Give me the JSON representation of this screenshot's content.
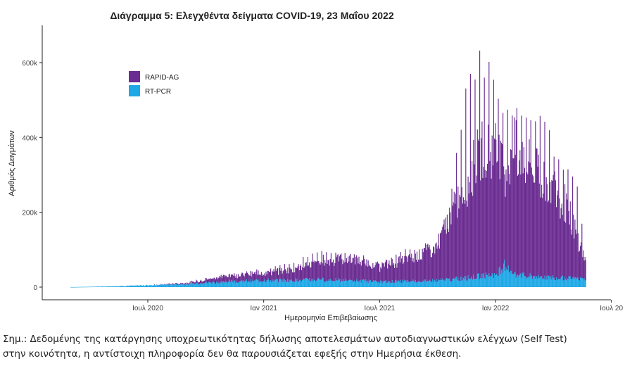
{
  "chart_data": {
    "type": "area",
    "title": "Διάγραμμα 5: Ελεγχθέντα δείγματα COVID-19, 23 Μαΐου 2022",
    "xlabel": "Ημερομηνία Επιβεβαίωσης",
    "ylabel": "Αριθμός Δειγμάτων",
    "x_ticks": [
      "Ιουλ 2020",
      "Ιαν 2021",
      "Ιουλ 2021",
      "Ιαν 2022",
      "Ιουλ 20"
    ],
    "y_ticks": [
      "0",
      "200k",
      "400k",
      "600k"
    ],
    "ylim": [
      0,
      700000
    ],
    "stacked": true,
    "legend_position": "top-left",
    "x": [
      "2020-03-01",
      "2020-05-01",
      "2020-07-01",
      "2020-09-01",
      "2020-11-01",
      "2021-01-01",
      "2021-02-15",
      "2021-04-01",
      "2021-05-15",
      "2021-07-01",
      "2021-08-15",
      "2021-09-30",
      "2021-10-20",
      "2021-11-15",
      "2021-12-10",
      "2022-01-01",
      "2022-01-15",
      "2022-02-01",
      "2022-02-20",
      "2022-03-10",
      "2022-04-01",
      "2022-04-20",
      "2022-05-10",
      "2022-05-23"
    ],
    "series": [
      {
        "name": "RAPID-AG",
        "color": "#6a2c91",
        "values": [
          0,
          0,
          0,
          3000,
          15000,
          20000,
          30000,
          50000,
          60000,
          40000,
          60000,
          90000,
          170000,
          250000,
          340000,
          330000,
          250000,
          340000,
          300000,
          270000,
          240000,
          200000,
          110000,
          50000
        ],
        "peaks": [
          0,
          0,
          0,
          5000,
          20000,
          30000,
          50000,
          80000,
          75000,
          55000,
          90000,
          100000,
          200000,
          560000,
          640000,
          540000,
          460000,
          500000,
          450000,
          500000,
          360000,
          330000,
          260000,
          80000
        ]
      },
      {
        "name": "RT-PCR",
        "color": "#1ea8e6",
        "values": [
          0,
          2000,
          5000,
          8000,
          15000,
          18000,
          18000,
          20000,
          18000,
          14000,
          16000,
          18000,
          20000,
          24000,
          30000,
          35000,
          60000,
          32000,
          30000,
          28000,
          26000,
          24000,
          22000,
          20000
        ]
      }
    ]
  },
  "footnote": {
    "line1": "Σημ.: Δεδομένης της κατάργησης υποχρεωτικότητας δήλωσης αποτελεσμάτων αυτοδιαγνωστικών ελέγχων (Self Test)",
    "line2": "στην κοινότητα, η αντίστοιχη πληροφορία δεν θα παρουσιάζεται εφεξής στην Ημερήσια έκθεση."
  }
}
